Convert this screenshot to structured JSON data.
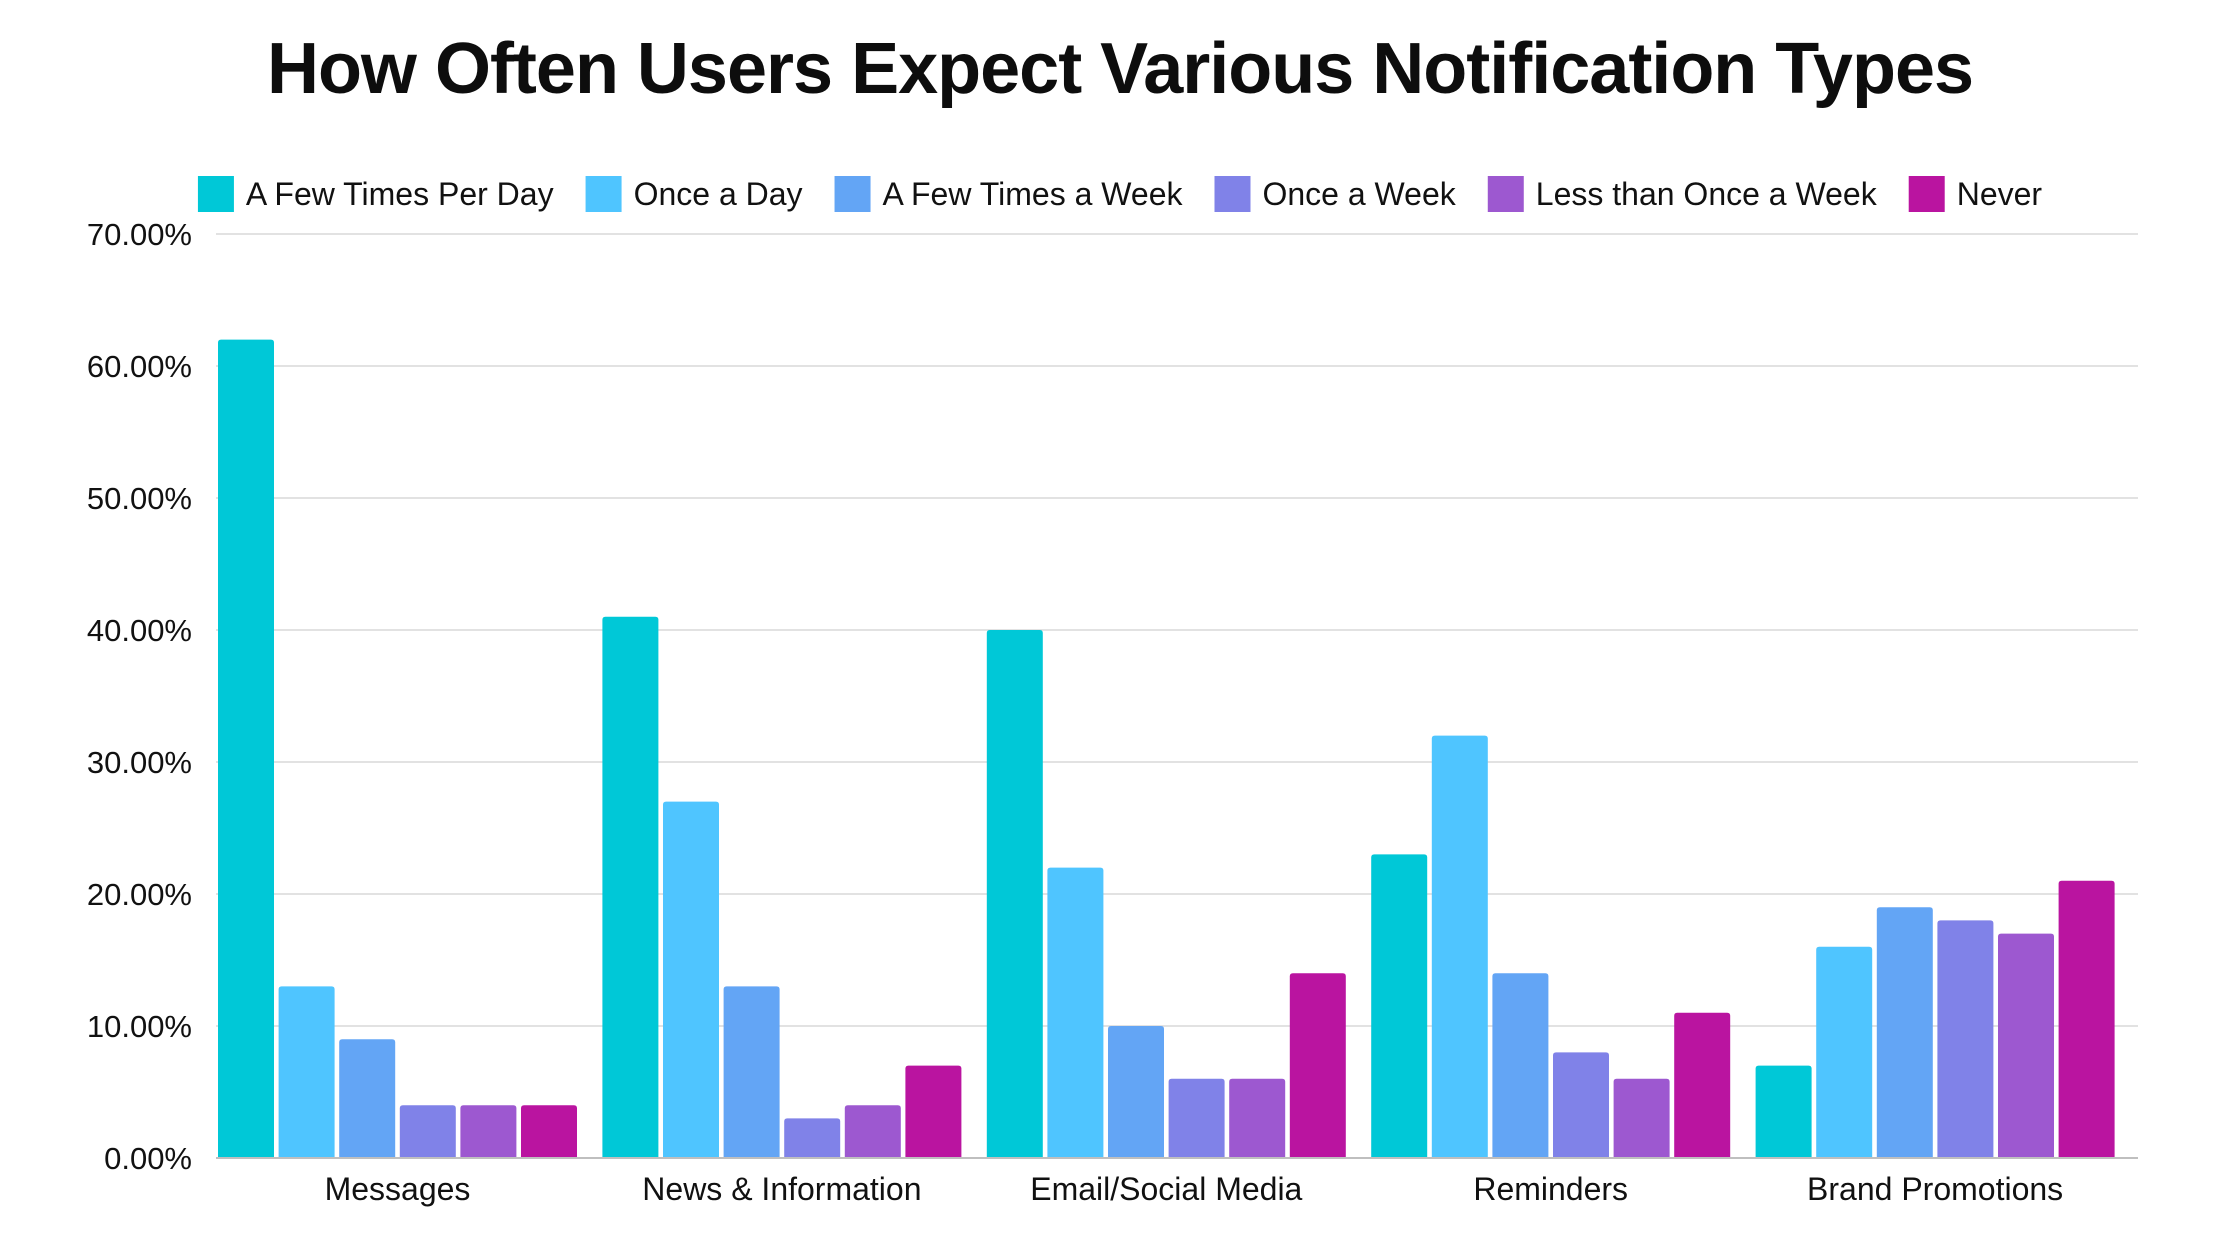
{
  "chart_data": {
    "type": "bar",
    "title": "How Often Users Expect Various Notification Types",
    "xlabel": "",
    "ylabel": "",
    "ylim": [
      0,
      70
    ],
    "yticks": [
      0,
      10,
      20,
      30,
      40,
      50,
      60,
      70
    ],
    "ytick_labels": [
      "0.00%",
      "10.00%",
      "20.00%",
      "30.00%",
      "40.00%",
      "50.00%",
      "60.00%",
      "70.00%"
    ],
    "grid": true,
    "legend_position": "top",
    "categories": [
      "Messages",
      "News & Information",
      "Email/Social Media",
      "Reminders",
      "Brand Promotions"
    ],
    "series": [
      {
        "name": "A Few Times Per Day",
        "color": "#00C8D7",
        "values": [
          62,
          41,
          40,
          23,
          7
        ]
      },
      {
        "name": "Once a Day",
        "color": "#4FC5FF",
        "values": [
          13,
          27,
          22,
          32,
          16
        ]
      },
      {
        "name": "A Few Times a Week",
        "color": "#63A5F5",
        "values": [
          9,
          13,
          10,
          14,
          19
        ]
      },
      {
        "name": "Once a Week",
        "color": "#8082E8",
        "values": [
          4,
          3,
          6,
          8,
          18
        ]
      },
      {
        "name": "Less than Once a Week",
        "color": "#9D58D0",
        "values": [
          4,
          4,
          6,
          6,
          17
        ]
      },
      {
        "name": "Never",
        "color": "#BA14A0",
        "values": [
          4,
          7,
          14,
          11,
          21
        ]
      }
    ]
  },
  "colors": {
    "grid": "#D9D9D9",
    "axis": "#BFBFBF",
    "text": "#111111"
  }
}
